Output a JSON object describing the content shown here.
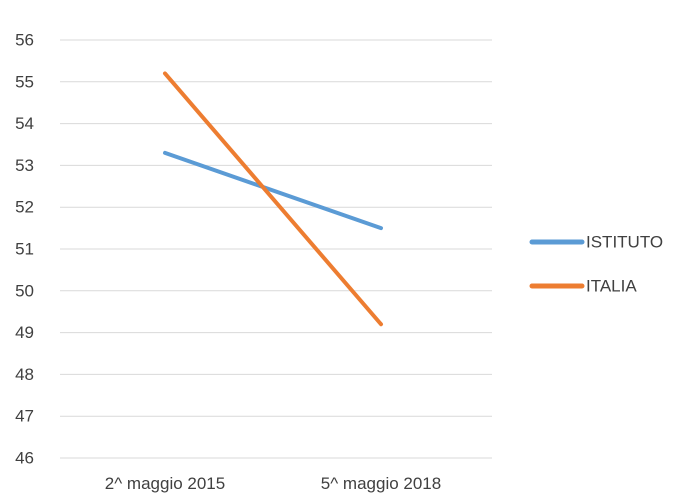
{
  "chart_data": {
    "type": "line",
    "categories": [
      "2^ maggio 2015",
      "5^ maggio 2018"
    ],
    "series": [
      {
        "name": "ISTITUTO",
        "values": [
          53.3,
          51.5
        ],
        "color": "#5b9bd5"
      },
      {
        "name": "ITALIA",
        "values": [
          55.2,
          49.2
        ],
        "color": "#ed7d31"
      }
    ],
    "ylim": [
      46,
      56
    ],
    "yticks": [
      "46",
      "47",
      "48",
      "49",
      "50",
      "51",
      "52",
      "53",
      "54",
      "55",
      "56"
    ],
    "grid": true,
    "legend_position": "right",
    "title": "",
    "xlabel": "",
    "ylabel": ""
  }
}
